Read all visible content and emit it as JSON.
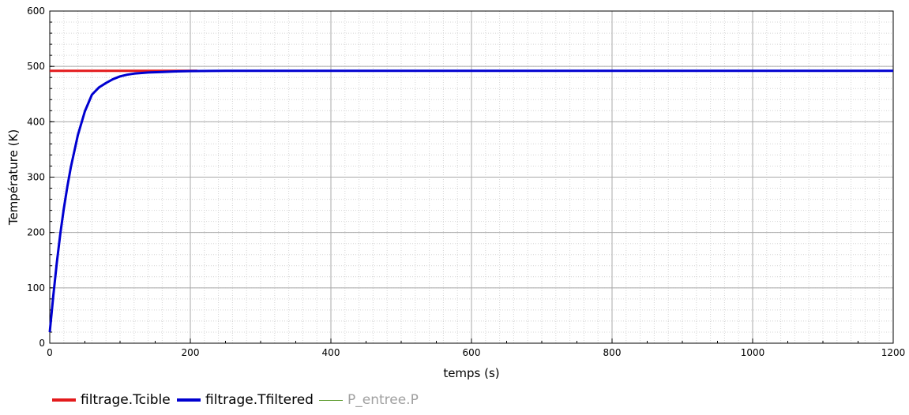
{
  "chart_data": {
    "type": "line",
    "xlabel": "temps (s)",
    "ylabel": "Température (K)",
    "xlim": [
      0,
      1200
    ],
    "ylim": [
      0,
      600
    ],
    "x_ticks": [
      0,
      200,
      400,
      600,
      800,
      1000,
      1200
    ],
    "y_ticks": [
      0,
      100,
      200,
      300,
      400,
      500,
      600
    ],
    "grid": true,
    "legend_position": "bottom-left",
    "series": [
      {
        "name": "filtrage.Tcible",
        "color": "#e31a1c",
        "x": [
          0,
          210
        ],
        "y": [
          492,
          492
        ]
      },
      {
        "name": "filtrage.Tfiltered",
        "color": "#0000d0",
        "x": [
          0,
          5,
          10,
          15,
          20,
          25,
          30,
          40,
          50,
          60,
          70,
          80,
          90,
          100,
          110,
          120,
          140,
          160,
          180,
          200,
          250,
          300,
          400,
          600,
          800,
          1000,
          1200
        ],
        "y": [
          20,
          86,
          145,
          197,
          243,
          283,
          318,
          376,
          419,
          449,
          462,
          470,
          477,
          482,
          485,
          487,
          489,
          490,
          491,
          491.5,
          492,
          492,
          492,
          492,
          492,
          492,
          492
        ]
      },
      {
        "name": "P_entree.P",
        "color": "#5a9a2a",
        "dimmed": true,
        "x": [],
        "y": []
      }
    ]
  }
}
